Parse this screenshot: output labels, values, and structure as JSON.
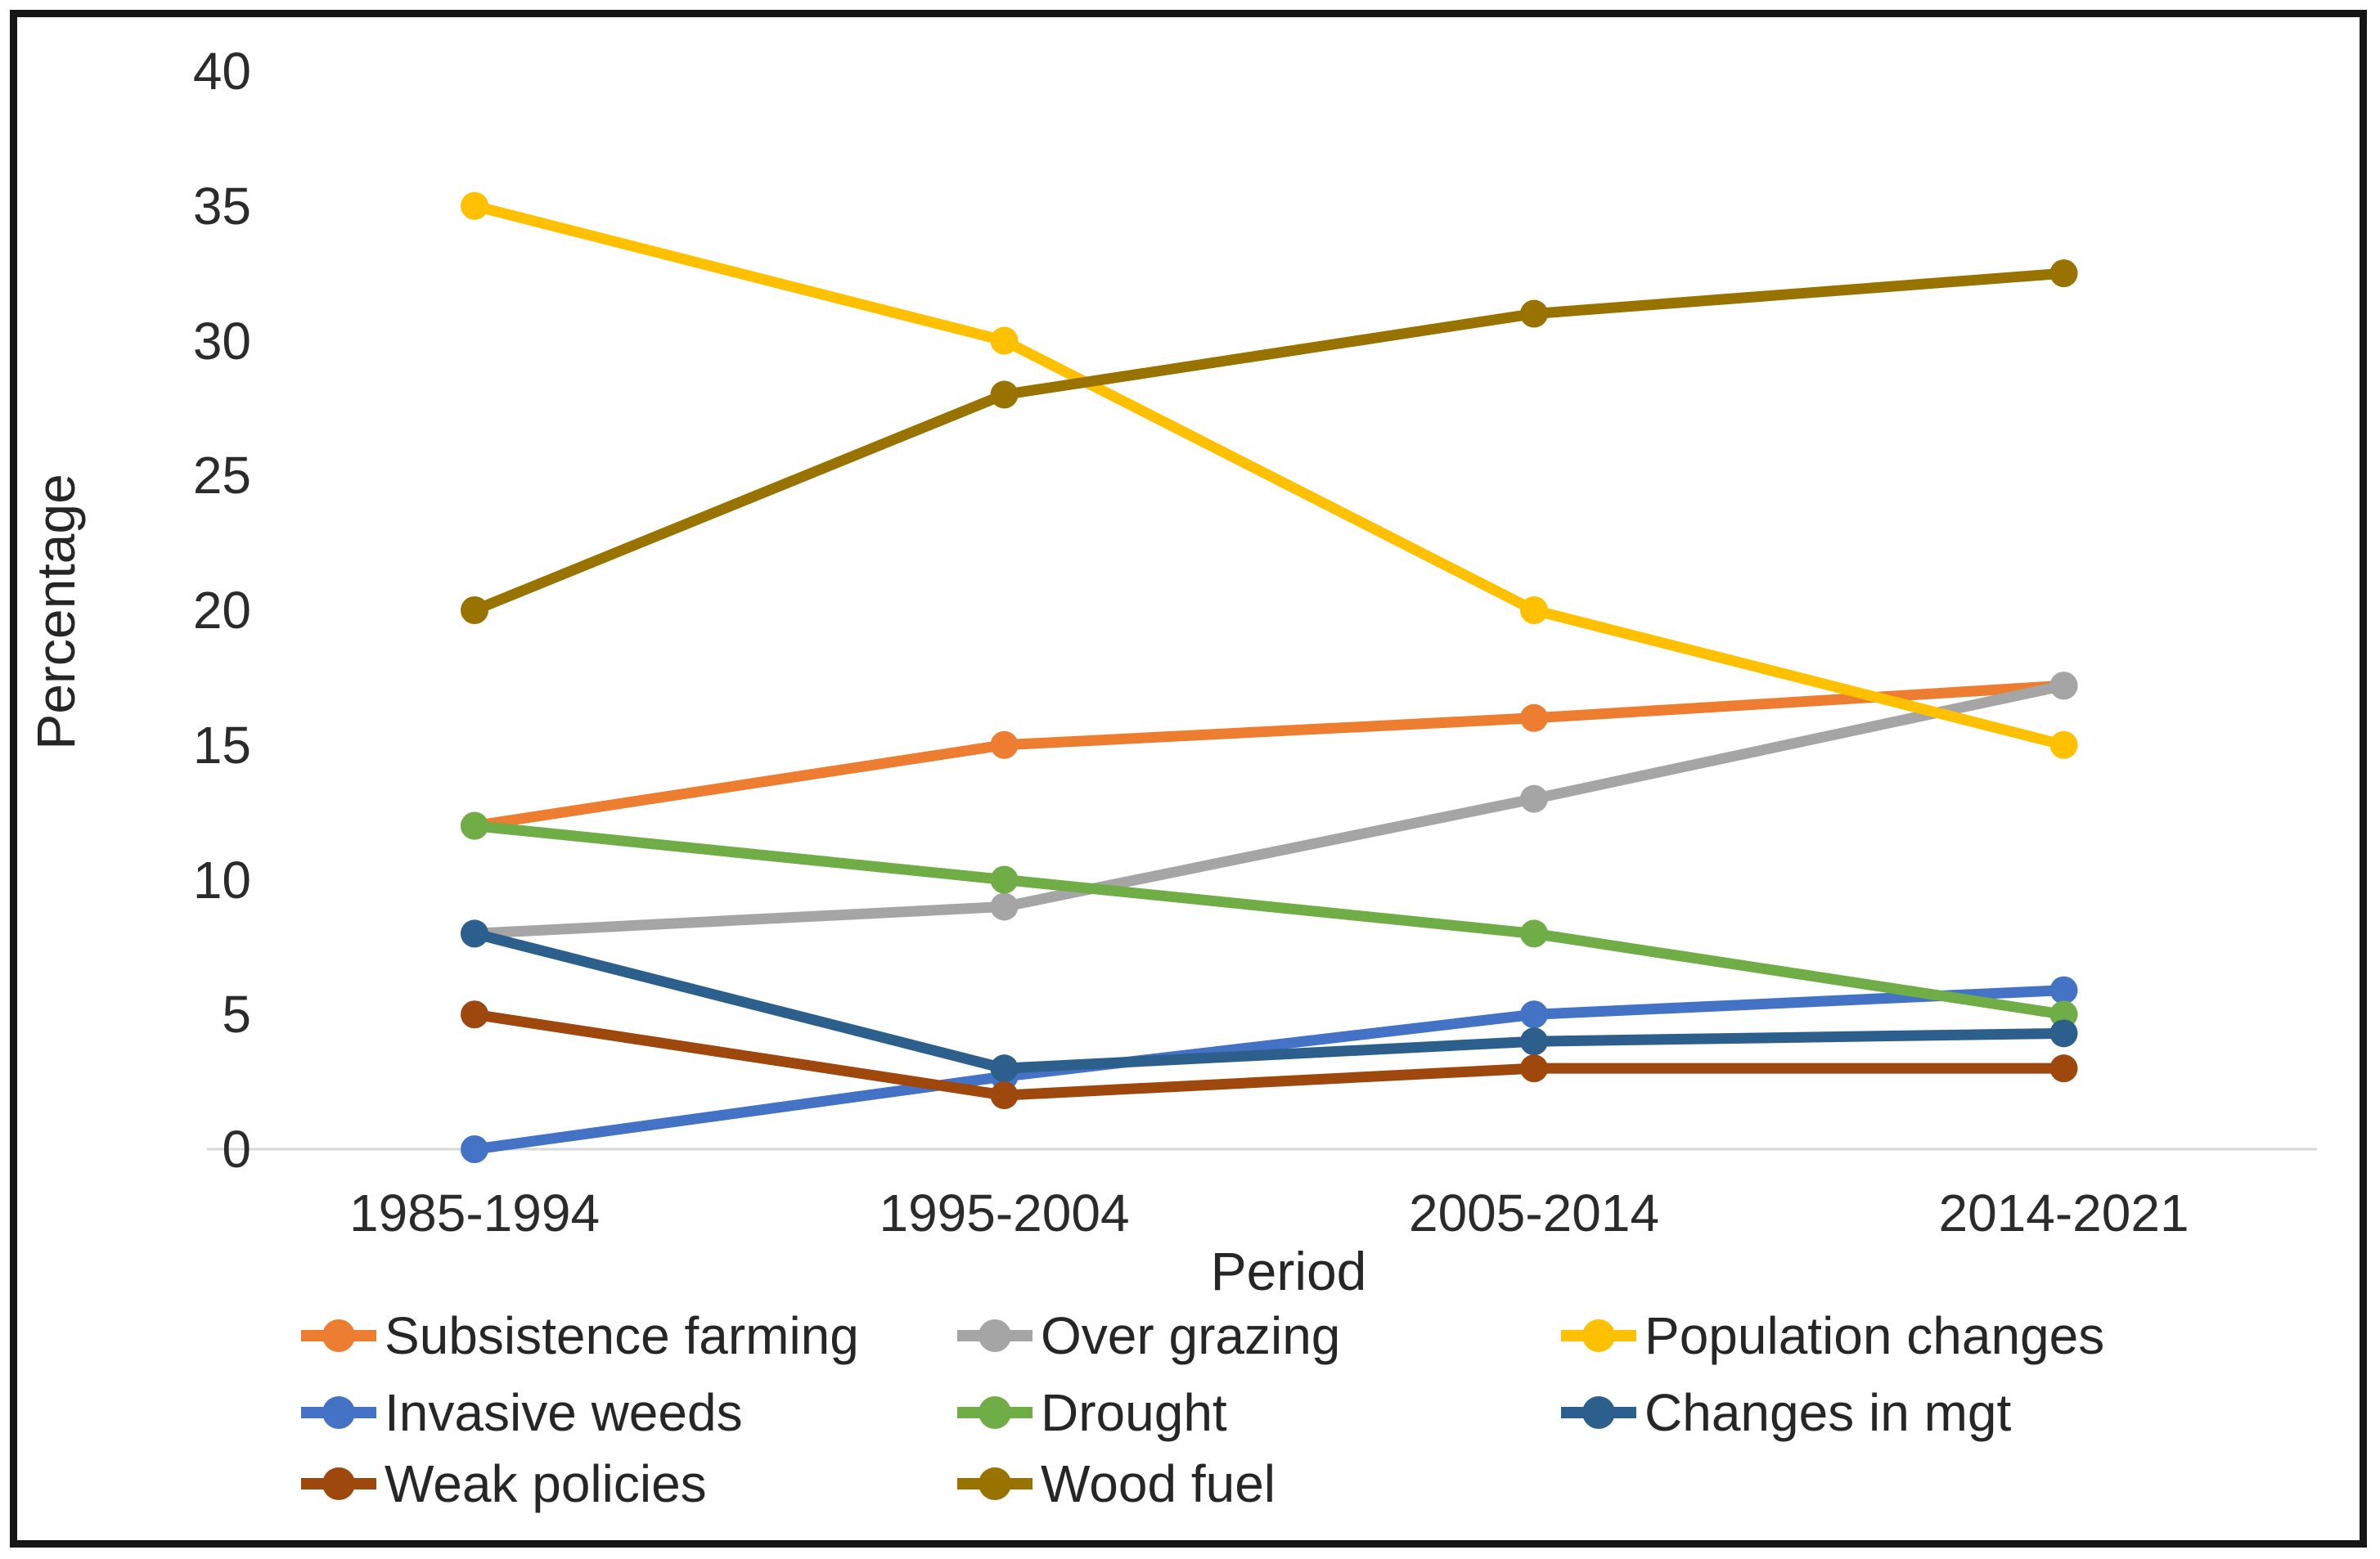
{
  "figure": {
    "y_axis_title": "Percentage",
    "x_axis_title": "Period"
  },
  "chart_data": {
    "type": "line",
    "title": "",
    "xlabel": "Period",
    "ylabel": "Percentage",
    "categories": [
      "1985-1994",
      "1995-2004",
      "2005-2014",
      "2014-2021"
    ],
    "yticks": [
      0,
      5,
      10,
      15,
      20,
      25,
      30,
      35,
      40
    ],
    "ylim": [
      0,
      40
    ],
    "grid": false,
    "legend_position": "bottom",
    "marker_style": "circle",
    "axis_line_color": "#d9d9d9",
    "series": [
      {
        "name": "Subsistence farming",
        "color": "#ED7D31",
        "values": [
          12,
          15,
          16,
          17.2
        ]
      },
      {
        "name": "Over grazing",
        "color": "#A5A5A5",
        "values": [
          8,
          9,
          13,
          17.2
        ]
      },
      {
        "name": "Population changes",
        "color": "#FFC000",
        "values": [
          35,
          30,
          20,
          15
        ]
      },
      {
        "name": "Invasive weeds",
        "color": "#4472C4",
        "values": [
          0,
          2.7,
          5,
          5.9
        ]
      },
      {
        "name": "Drought",
        "color": "#70AD47",
        "values": [
          12,
          10,
          8,
          5
        ]
      },
      {
        "name": "Changes in mgt",
        "color": "#2D5F8C",
        "values": [
          8,
          3,
          4,
          4.3
        ]
      },
      {
        "name": "Weak policies",
        "color": "#9E480E",
        "values": [
          5,
          2,
          3,
          3
        ]
      },
      {
        "name": "Wood fuel",
        "color": "#997300",
        "values": [
          20,
          28,
          31,
          32.5
        ]
      }
    ]
  }
}
